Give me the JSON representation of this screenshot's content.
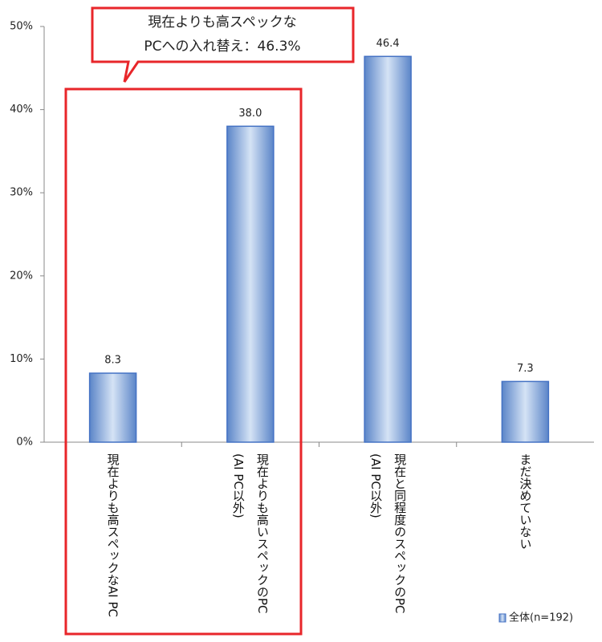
{
  "chart_data": {
    "type": "bar",
    "annotation": [
      "現在よりも高スペックな",
      "PCへの入れ替え：46.3%"
    ],
    "categories": [
      "現在よりも高スペックなAI PC",
      "現在よりも高いスペックのPC\n(AI PC以外)",
      "現在と同程度のスペックのPC\n(AI PC以外)",
      "まだ決めていない"
    ],
    "series": [
      {
        "name": "全体(n=192)",
        "color": "#4472c4",
        "values": [
          8.3,
          38.0,
          46.4,
          7.3
        ],
        "value_labels": [
          "8.3",
          "38.0",
          "46.4",
          "7.3"
        ]
      }
    ],
    "ylim": [
      0,
      50
    ],
    "yticks": [
      {
        "value": 0,
        "label": "0%"
      },
      {
        "value": 10,
        "label": "10%"
      },
      {
        "value": 20,
        "label": "20%"
      },
      {
        "value": 30,
        "label": "30%"
      },
      {
        "value": 40,
        "label": "40%"
      },
      {
        "value": 50,
        "label": "50%"
      }
    ],
    "grid": false,
    "legend": "bottom-right"
  }
}
